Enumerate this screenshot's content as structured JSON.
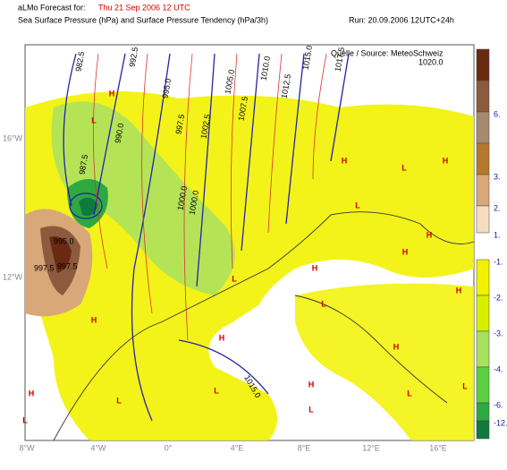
{
  "header": {
    "prefix": "aLMo Forecast for:",
    "valid_time": "Thu 21 Sep 2006 12 UTC",
    "subtitle": "Sea Surface Pressure (hPa)  and  Surface Pressure Tendency (hPa/3h)",
    "run": "Run: 20.09.2006 12UTC+24h",
    "source": "Quelle / Source: MeteoSchweiz"
  },
  "map": {
    "isobar_labels": [
      "982.5",
      "992.5",
      "995.0",
      "997.5",
      "1000.0",
      "1002.5",
      "1005.0",
      "1007.5",
      "1010.0",
      "1012.5",
      "1015.0",
      "1017.5",
      "1020.0",
      "990.0",
      "987.5",
      "997.5",
      "1000.0",
      "995.0",
      "997.5",
      "1015.0"
    ],
    "pressure_centers": [
      "H",
      "L",
      "H",
      "L",
      "H",
      "L",
      "H",
      "L",
      "H",
      "L",
      "H",
      "H",
      "L",
      "L",
      "H",
      "L",
      "H",
      "L",
      "L",
      "H",
      "L",
      "H",
      "H"
    ],
    "lon_labels": [
      "8°W",
      "4°W",
      "0°",
      "4°E",
      "8°E",
      "12°E",
      "16°E"
    ],
    "lat_labels": [
      "16°W",
      "12°W"
    ]
  },
  "legend": {
    "entries": [
      {
        "label": "",
        "color": "#6a2a12"
      },
      {
        "label": "6.",
        "color": "#8c5a3c"
      },
      {
        "label": "",
        "color": "#a58a70"
      },
      {
        "label": "3.",
        "color": "#b5782c"
      },
      {
        "label": "2.",
        "color": "#d8a878"
      },
      {
        "label": "1.",
        "color": "#f6dcc0"
      },
      {
        "label": "-1.",
        "color": "#f2f200"
      },
      {
        "label": "-2.",
        "color": "#d6f000"
      },
      {
        "label": "-3.",
        "color": "#a8e060"
      },
      {
        "label": "-4.",
        "color": "#5cd040"
      },
      {
        "label": "-6.",
        "color": "#2ea840"
      },
      {
        "label": "-12.",
        "color": "#107a3c"
      }
    ]
  }
}
